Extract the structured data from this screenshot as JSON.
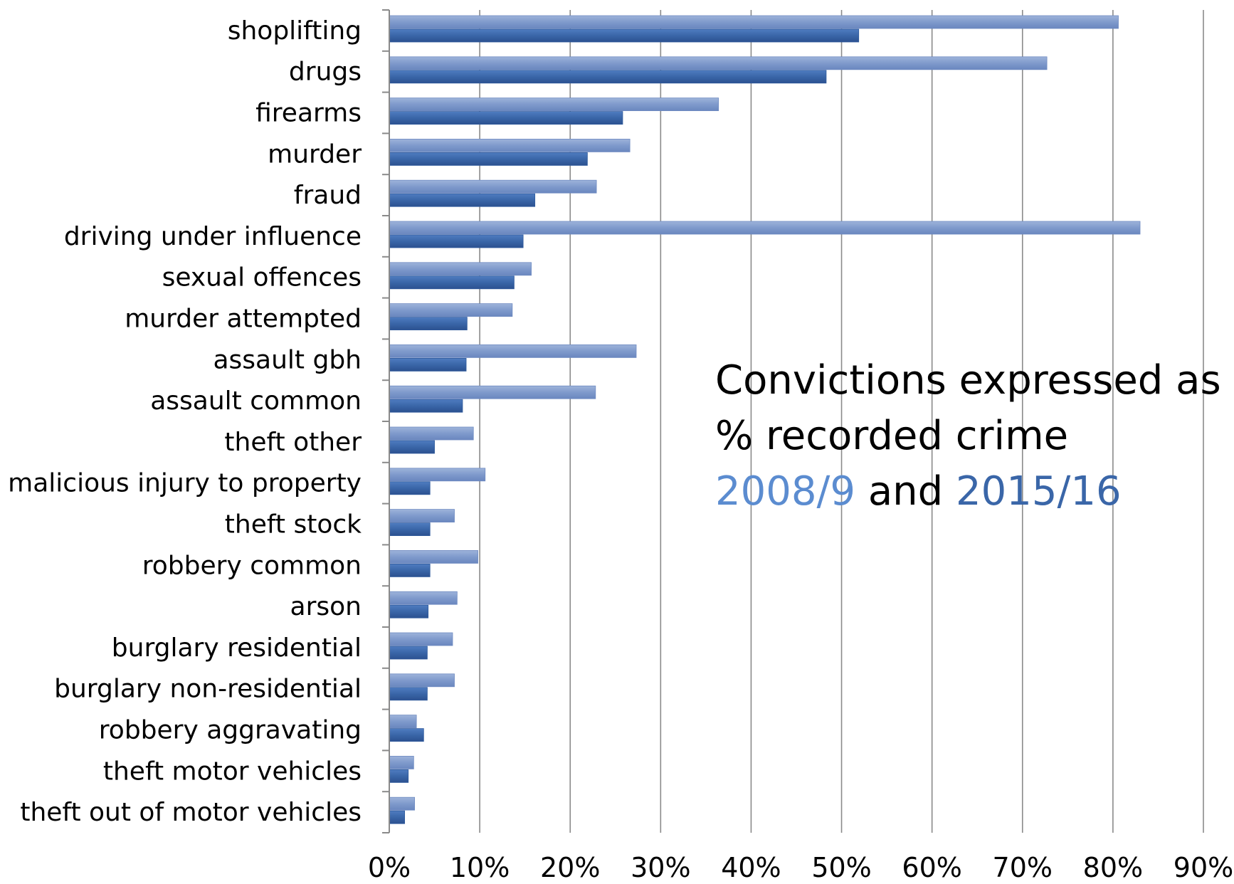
{
  "chart_data": {
    "type": "bar",
    "orientation": "horizontal",
    "categories": [
      "shoplifting",
      "drugs",
      "firearms",
      "murder",
      "fraud",
      "driving under influence",
      "sexual offences",
      "murder attempted",
      "assault gbh",
      "assault common",
      "theft other",
      "malicious injury to property",
      "theft stock",
      "robbery common",
      "arson",
      "burglary residential",
      "burglary non-residential",
      "robbery aggravating",
      "theft motor vehicles",
      "theft out of motor vehicles"
    ],
    "series": [
      {
        "name": "2008/9",
        "color": "#7f9acc",
        "values": [
          80.6,
          72.7,
          36.4,
          26.6,
          22.9,
          83.0,
          15.7,
          13.6,
          27.3,
          22.8,
          9.3,
          10.6,
          7.2,
          9.8,
          7.5,
          7.0,
          7.2,
          3.0,
          2.7,
          2.8
        ]
      },
      {
        "name": "2015/16",
        "color": "#3a66a8",
        "values": [
          51.9,
          48.3,
          25.8,
          21.9,
          16.1,
          14.8,
          13.8,
          8.6,
          8.5,
          8.1,
          5.0,
          4.5,
          4.5,
          4.5,
          4.3,
          4.2,
          4.2,
          3.8,
          2.1,
          1.7
        ]
      }
    ],
    "xlim": [
      0,
      90
    ],
    "x_ticks": [
      "0%",
      "10%",
      "20%",
      "30%",
      "40%",
      "50%",
      "60%",
      "70%",
      "80%",
      "90%"
    ],
    "grid": "vertical",
    "legend": "none"
  },
  "annotation": {
    "line1": "Convictions expressed as",
    "line2": "% recorded crime",
    "series1_label": "2008/9",
    "joiner": "and",
    "series2_label": "2015/16",
    "series1_color": "#5b8cd0",
    "series2_color": "#3a66a8"
  }
}
